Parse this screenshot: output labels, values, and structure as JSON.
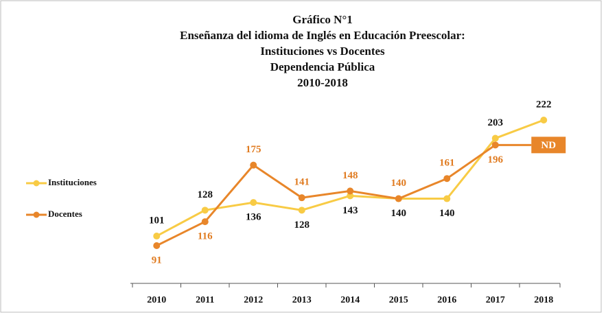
{
  "chart_data": {
    "type": "line",
    "title": [
      "Gráfico N°1",
      "Enseñanza del idioma de Inglés en Educación Preescolar:",
      "Instituciones vs Docentes",
      "Dependencia Pública",
      "2010-2018"
    ],
    "categories": [
      "2010",
      "2011",
      "2012",
      "2013",
      "2014",
      "2015",
      "2016",
      "2017",
      "2018"
    ],
    "series": [
      {
        "name": "Instituciones",
        "color": "#f8cb45",
        "values": [
          101,
          128,
          136,
          128,
          143,
          140,
          140,
          203,
          222
        ]
      },
      {
        "name": "Docentes",
        "color": "#e8862a",
        "values": [
          91,
          116,
          175,
          141,
          148,
          140,
          161,
          196,
          null
        ]
      }
    ],
    "annotations": [
      "ND"
    ]
  }
}
